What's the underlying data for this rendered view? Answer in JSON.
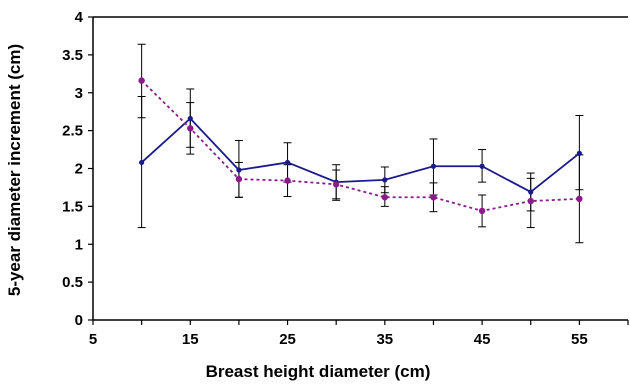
{
  "chart_data": {
    "type": "line",
    "title": "",
    "xlabel": "Breast height diameter (cm)",
    "ylabel": "5-year diameter increment (cm)",
    "xlim": [
      5,
      60
    ],
    "ylim": [
      0,
      4
    ],
    "x_ticks": [
      5,
      15,
      25,
      35,
      45,
      55
    ],
    "y_ticks": [
      0,
      0.5,
      1,
      1.5,
      2,
      2.5,
      3,
      3.5,
      4
    ],
    "y_tick_labels": [
      "0",
      "0.5",
      "1",
      "1.5",
      "2",
      "2.5",
      "3",
      "3.5",
      "4"
    ],
    "grid": false,
    "legend": "none",
    "series": [
      {
        "color": "#1a1a8c",
        "line_style": "solid",
        "x": [
          10,
          15,
          20,
          25,
          30,
          35,
          40,
          45,
          50,
          55
        ],
        "y": [
          2.08,
          2.66,
          1.98,
          2.08,
          1.82,
          1.85,
          2.03,
          2.03,
          1.69,
          2.2
        ],
        "error_low": [
          1.22,
          2.28,
          1.62,
          1.82,
          1.6,
          1.68,
          1.65,
          1.82,
          1.44,
          1.72
        ],
        "error_high": [
          2.95,
          3.05,
          2.37,
          2.34,
          2.05,
          2.02,
          2.39,
          2.25,
          1.94,
          2.7
        ]
      },
      {
        "color": "#8b1a8b",
        "line_style": "dotted",
        "x": [
          10,
          15,
          20,
          25,
          30,
          35,
          40,
          45,
          50,
          55
        ],
        "y": [
          3.16,
          2.53,
          1.86,
          1.84,
          1.79,
          1.62,
          1.62,
          1.44,
          1.57,
          1.6
        ],
        "error_low": [
          2.67,
          2.19,
          1.62,
          1.63,
          1.58,
          1.5,
          1.43,
          1.23,
          1.22,
          1.02
        ],
        "error_high": [
          3.64,
          2.87,
          2.08,
          2.05,
          1.98,
          1.76,
          1.81,
          1.65,
          1.87,
          2.18
        ]
      }
    ]
  }
}
